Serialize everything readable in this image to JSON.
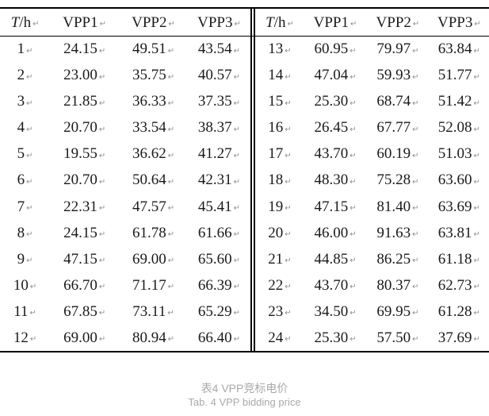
{
  "table": {
    "cell_end_mark": "↵",
    "left": {
      "headers": [
        {
          "italic": "T",
          "text": "/h"
        },
        {
          "text": "VPP1"
        },
        {
          "text": "VPP2"
        },
        {
          "text": "VPP3"
        }
      ],
      "rows": [
        [
          "1",
          "24.15",
          "49.51",
          "43.54"
        ],
        [
          "2",
          "23.00",
          "35.75",
          "40.57"
        ],
        [
          "3",
          "21.85",
          "36.33",
          "37.35"
        ],
        [
          "4",
          "20.70",
          "33.54",
          "38.37"
        ],
        [
          "5",
          "19.55",
          "36.62",
          "41.27"
        ],
        [
          "6",
          "20.70",
          "50.64",
          "42.31"
        ],
        [
          "7",
          "22.31",
          "47.57",
          "45.41"
        ],
        [
          "8",
          "24.15",
          "61.78",
          "61.66"
        ],
        [
          "9",
          "47.15",
          "69.00",
          "65.60"
        ],
        [
          "10",
          "66.70",
          "71.17",
          "66.39"
        ],
        [
          "11",
          "67.85",
          "73.11",
          "65.29"
        ],
        [
          "12",
          "69.00",
          "80.94",
          "66.40"
        ]
      ]
    },
    "right": {
      "headers": [
        {
          "italic": "T",
          "text": "/h"
        },
        {
          "text": "VPP1"
        },
        {
          "text": "VPP2"
        },
        {
          "text": "VPP3"
        }
      ],
      "rows": [
        [
          "13",
          "60.95",
          "79.97",
          "63.84"
        ],
        [
          "14",
          "47.04",
          "59.93",
          "51.77"
        ],
        [
          "15",
          "25.30",
          "68.74",
          "51.42"
        ],
        [
          "16",
          "26.45",
          "67.77",
          "52.08"
        ],
        [
          "17",
          "43.70",
          "60.19",
          "51.03"
        ],
        [
          "18",
          "48.30",
          "75.28",
          "63.60"
        ],
        [
          "19",
          "47.15",
          "81.40",
          "63.69"
        ],
        [
          "20",
          "46.00",
          "91.63",
          "63.81"
        ],
        [
          "21",
          "44.85",
          "86.25",
          "61.18"
        ],
        [
          "22",
          "43.70",
          "80.37",
          "62.73"
        ],
        [
          "23",
          "34.50",
          "69.95",
          "61.28"
        ],
        [
          "24",
          "25.30",
          "57.50",
          "37.69"
        ]
      ]
    }
  },
  "caption": {
    "zh": "表4 VPP竞标电价",
    "en": "Tab. 4 VPP bidding price"
  },
  "colors": {
    "border": "#000000",
    "caption_text": "#a9a9a9",
    "cell_mark": "#8f8f8f"
  }
}
